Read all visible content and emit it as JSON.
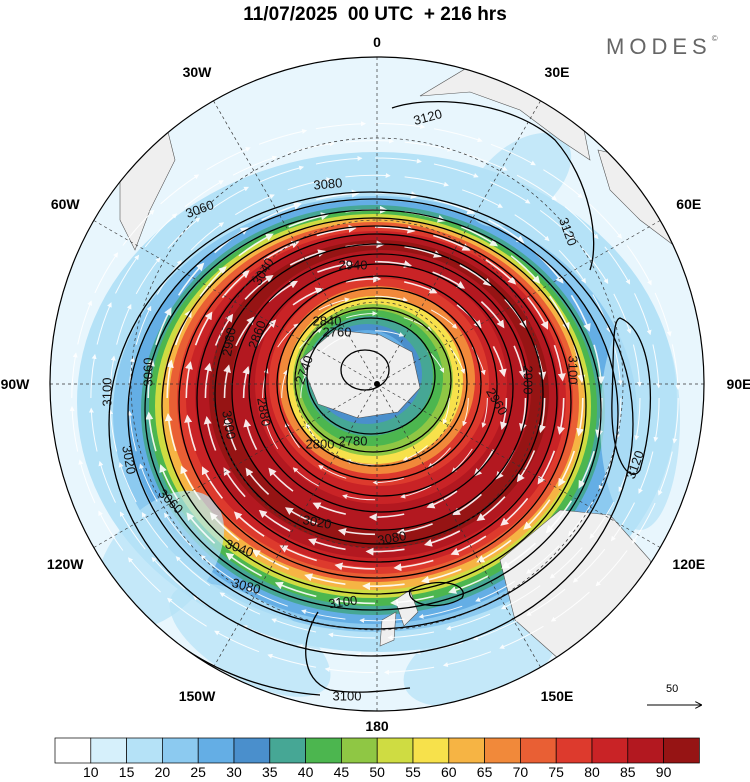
{
  "header": {
    "title": "11/07/2025  00 UTC  + 216 hrs",
    "brand": "MODES",
    "brand_mark": "©"
  },
  "longitude_labels": [
    {
      "text": "0",
      "lon": 0
    },
    {
      "text": "30E",
      "lon": 30
    },
    {
      "text": "60E",
      "lon": 60
    },
    {
      "text": "90E",
      "lon": 90
    },
    {
      "text": "120E",
      "lon": 120
    },
    {
      "text": "150E",
      "lon": 150
    },
    {
      "text": "180",
      "lon": 180
    },
    {
      "text": "150W",
      "lon": -150
    },
    {
      "text": "120W",
      "lon": -120
    },
    {
      "text": "90W",
      "lon": -90
    },
    {
      "text": "60W",
      "lon": -60
    },
    {
      "text": "30W",
      "lon": -30
    }
  ],
  "contour_labels": [
    "3120",
    "3120",
    "3120",
    "3100",
    "3100",
    "3100",
    "3100",
    "3080",
    "3080",
    "3080",
    "3060",
    "3060",
    "3060",
    "3040",
    "3040",
    "3020",
    "3020",
    "3000",
    "2980",
    "2960",
    "2940",
    "2900",
    "2880",
    "2860",
    "2840",
    "2800",
    "2780",
    "2760",
    "2740"
  ],
  "colorbar": {
    "colors": [
      "#ffffff",
      "#d6f0fb",
      "#b5e2f7",
      "#8ccaf0",
      "#64aee5",
      "#4a8fcc",
      "#46a795",
      "#4cb64f",
      "#8fc744",
      "#cfdc42",
      "#f7e14b",
      "#f6b444",
      "#f1893a",
      "#e95f34",
      "#dd3a2d",
      "#c92326",
      "#b31820",
      "#961414"
    ],
    "labels": [
      "10",
      "15",
      "20",
      "25",
      "30",
      "35",
      "40",
      "45",
      "50",
      "55",
      "60",
      "65",
      "70",
      "75",
      "80",
      "85",
      "90"
    ]
  },
  "reference_vector": {
    "label": "50"
  }
}
